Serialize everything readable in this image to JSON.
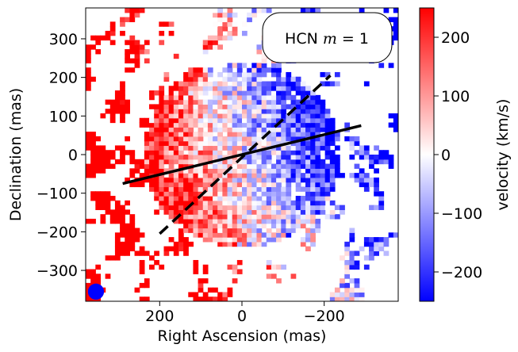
{
  "chart_data": {
    "type": "heatmap",
    "title": "",
    "annotation_label": "HCN m = 1",
    "annotation_prefix": "HCN ",
    "annotation_var": "m",
    "annotation_suffix": " = 1",
    "xlabel": "Right Ascension (mas)",
    "ylabel": "Declination (mas)",
    "xlim": [
      380,
      -380
    ],
    "ylim": [
      -380,
      380
    ],
    "xticks": [
      200,
      0,
      -200
    ],
    "xtick_labels": [
      "200",
      "0",
      "−200"
    ],
    "yticks": [
      300,
      200,
      100,
      0,
      -100,
      -200,
      -300
    ],
    "ytick_labels": [
      "300",
      "200",
      "100",
      "0",
      "−100",
      "−200",
      "−300"
    ],
    "colorbar": {
      "label": "velocity (km/s)",
      "range": [
        -250,
        250
      ],
      "ticks": [
        200,
        100,
        0,
        -100,
        -200
      ],
      "tick_labels": [
        "200",
        "100",
        "0",
        "−100",
        "−200"
      ],
      "cmap": "bwr"
    },
    "lines": [
      {
        "name": "solid-line",
        "style": "solid",
        "x": [
          290,
          -290
        ],
        "y": [
          -75,
          75
        ]
      },
      {
        "name": "dashed-line",
        "style": "dashed",
        "x": [
          200,
          -215
        ],
        "y": [
          -205,
          205
        ]
      }
    ],
    "beam": {
      "x": 355,
      "y": -355,
      "radius_mas": 14
    }
  },
  "colors": {
    "red": "#ff0000",
    "blue": "#0000ff",
    "white": "#ffffff",
    "line": "#000000"
  }
}
